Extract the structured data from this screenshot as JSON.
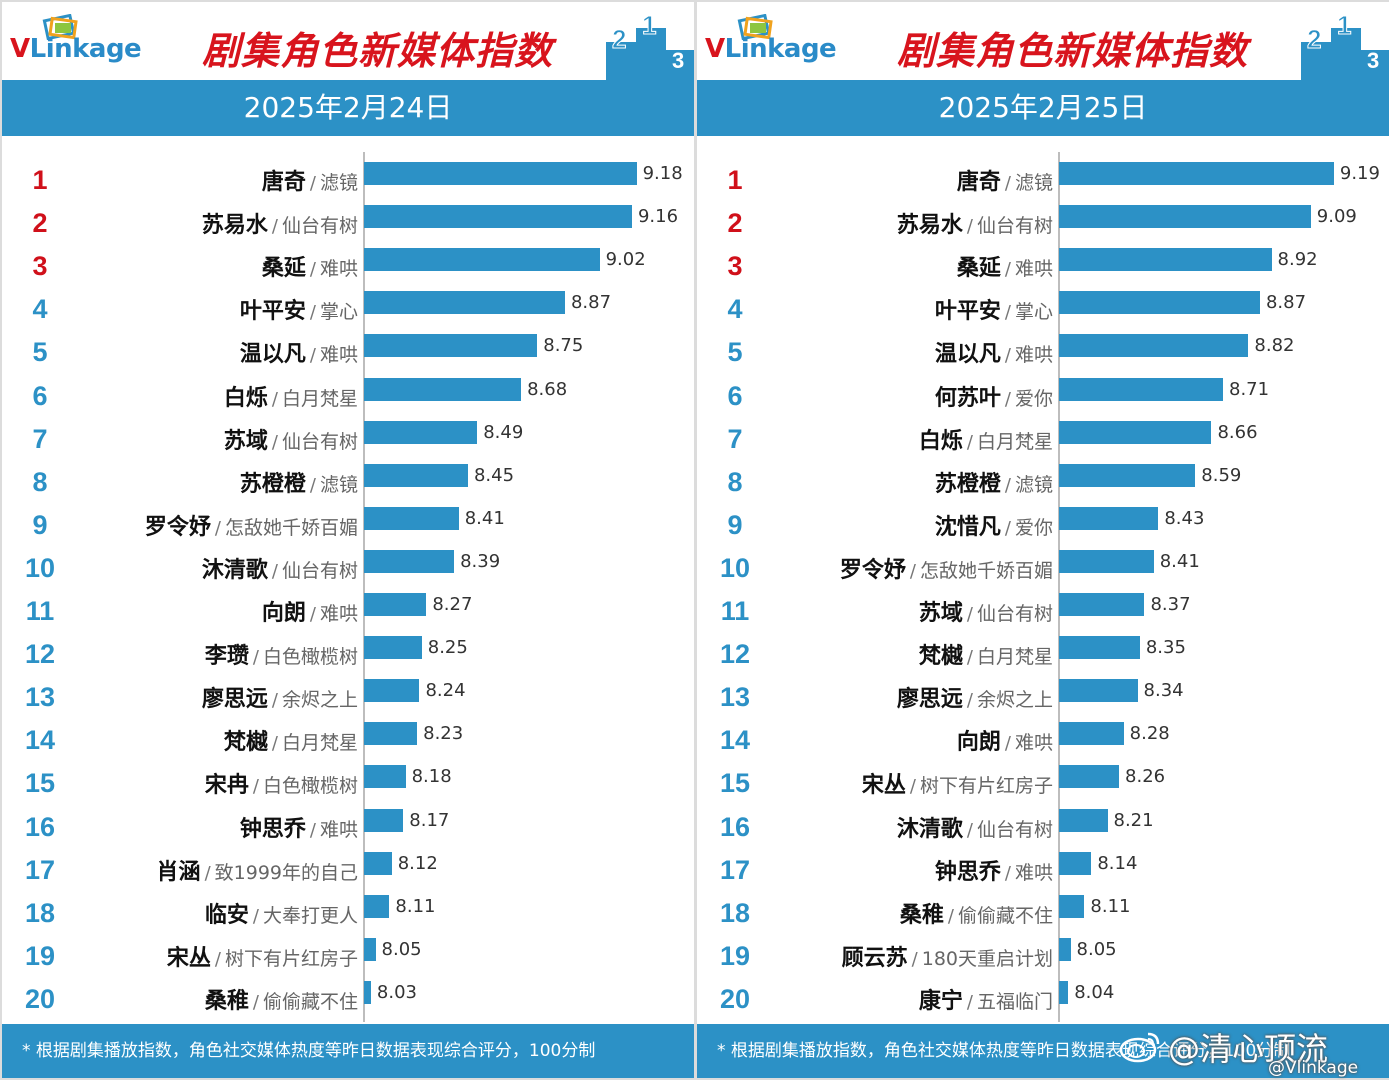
{
  "brand": {
    "logo_text_v": "V",
    "logo_text_rest": "Linkage"
  },
  "report_title": "剧集角色新媒体指数",
  "footer_note": "* 根据剧集播放指数，角色社交媒体热度等昨日数据表现综合评分，100分制",
  "watermark": {
    "main": "@清心顶流",
    "sub": "@Vlinkage"
  },
  "colors": {
    "bar": "#2c91c6",
    "header": "#2c91c6",
    "title_red": "#d8141d",
    "rank_red": "#d0101a",
    "rank_blue": "#2c91c6"
  },
  "chart_data": [
    {
      "type": "bar",
      "orientation": "horizontal",
      "title": "剧集角色新媒体指数",
      "date": "2025年2月24日",
      "grid": false,
      "ranks": [
        "1",
        "2",
        "3",
        "4",
        "5",
        "6",
        "7",
        "8",
        "9",
        "10",
        "11",
        "12",
        "13",
        "14",
        "15",
        "16",
        "17",
        "18",
        "19",
        "20"
      ],
      "names": [
        "唐奇",
        "苏易水",
        "桑延",
        "叶平安",
        "温以凡",
        "白烁",
        "苏域",
        "苏橙橙",
        "罗令妤",
        "沐清歌",
        "向朗",
        "李瓒",
        "廖思远",
        "梵樾",
        "宋冉",
        "钟思乔",
        "肖涵",
        "临安",
        "宋丛",
        "桑稚"
      ],
      "shows": [
        "滤镜",
        "仙台有树",
        "难哄",
        "掌心",
        "难哄",
        "白月梵星",
        "仙台有树",
        "滤镜",
        "怎敌她千娇百媚",
        "仙台有树",
        "难哄",
        "白色橄榄树",
        "余烬之上",
        "白月梵星",
        "白色橄榄树",
        "难哄",
        "致1999年的自己",
        "大奉打更人",
        "树下有片红房子",
        "偷偷藏不住"
      ],
      "values": [
        9.18,
        9.16,
        9.02,
        8.87,
        8.75,
        8.68,
        8.49,
        8.45,
        8.41,
        8.39,
        8.27,
        8.25,
        8.24,
        8.23,
        8.18,
        8.17,
        8.12,
        8.11,
        8.05,
        8.03
      ]
    },
    {
      "type": "bar",
      "orientation": "horizontal",
      "title": "剧集角色新媒体指数",
      "date": "2025年2月25日",
      "grid": false,
      "ranks": [
        "1",
        "2",
        "3",
        "4",
        "5",
        "6",
        "7",
        "8",
        "9",
        "10",
        "11",
        "12",
        "13",
        "14",
        "15",
        "16",
        "17",
        "18",
        "19",
        "20"
      ],
      "names": [
        "唐奇",
        "苏易水",
        "桑延",
        "叶平安",
        "温以凡",
        "何苏叶",
        "白烁",
        "苏橙橙",
        "沈惜凡",
        "罗令妤",
        "苏域",
        "梵樾",
        "廖思远",
        "向朗",
        "宋丛",
        "沐清歌",
        "钟思乔",
        "桑稚",
        "顾云苏",
        "康宁"
      ],
      "shows": [
        "滤镜",
        "仙台有树",
        "难哄",
        "掌心",
        "难哄",
        "爱你",
        "白月梵星",
        "滤镜",
        "爱你",
        "怎敌她千娇百媚",
        "仙台有树",
        "白月梵星",
        "余烬之上",
        "难哄",
        "树下有片红房子",
        "仙台有树",
        "难哄",
        "偷偷藏不住",
        "180天重启计划",
        "五福临门"
      ],
      "values": [
        9.19,
        9.09,
        8.92,
        8.87,
        8.82,
        8.71,
        8.66,
        8.59,
        8.43,
        8.41,
        8.37,
        8.35,
        8.34,
        8.28,
        8.26,
        8.21,
        8.14,
        8.11,
        8.05,
        8.04
      ]
    }
  ]
}
